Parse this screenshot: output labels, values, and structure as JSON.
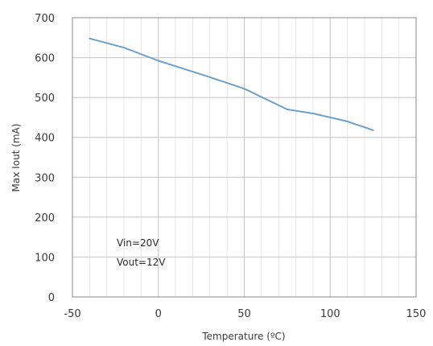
{
  "chart_data": {
    "type": "line",
    "xlabel": "Temperature (ºC)",
    "ylabel": "Max Iout (mA)",
    "xlim": [
      -50,
      150
    ],
    "ylim": [
      0,
      700
    ],
    "x_ticks": [
      "-50",
      "0",
      "50",
      "100",
      "150"
    ],
    "y_ticks": [
      "0",
      "100",
      "200",
      "300",
      "400",
      "500",
      "600",
      "700"
    ],
    "grid": true,
    "series": [
      {
        "x": [
          -40,
          -20,
          0,
          25,
          50,
          75,
          90,
          110,
          125
        ],
        "y": [
          648,
          625,
          592,
          558,
          522,
          470,
          460,
          440,
          418
        ]
      }
    ],
    "annotations": [
      "Vin=20V",
      "Vout=12V"
    ],
    "colors": {
      "line": "#6fa0c8",
      "grid_major": "#c4c4c4",
      "grid_minor": "#e6e6e6",
      "axis": "#8a8a8a"
    }
  }
}
